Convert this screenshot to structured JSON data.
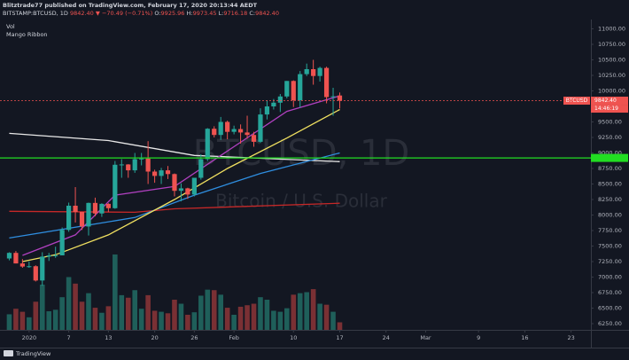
{
  "header": {
    "publisher_line": "Blitztrade77 published on TradingView.com, February 17, 2020 20:13:44 AEDT",
    "symbol": "BITSTAMP:BTCUSD, 1D",
    "last": "9842.40",
    "change": "▼ −70.49 (−0.71%)",
    "ohlc": [
      {
        "key": "O:",
        "value": "9925.96"
      },
      {
        "key": "H:",
        "value": "9973.45"
      },
      {
        "key": "L:",
        "value": "9716.18"
      },
      {
        "key": "C:",
        "value": "9842.40"
      }
    ],
    "indicators": [
      "Vol",
      "Mango Ribbon"
    ]
  },
  "footer": {
    "logo": "TradingView"
  },
  "chart_data": {
    "type": "candlestick",
    "watermark": [
      "BTCUSD, 1D",
      "Bitcoin / U.S. Dollar"
    ],
    "x": [
      "2019-12-29",
      "2019-12-30",
      "2019-12-31",
      "2020-01-01",
      "2020-01-02",
      "2020-01-03",
      "2020-01-04",
      "2020-01-05",
      "2020-01-06",
      "2020-01-07",
      "2020-01-08",
      "2020-01-09",
      "2020-01-10",
      "2020-01-11",
      "2020-01-12",
      "2020-01-13",
      "2020-01-14",
      "2020-01-15",
      "2020-01-16",
      "2020-01-17",
      "2020-01-18",
      "2020-01-19",
      "2020-01-20",
      "2020-01-21",
      "2020-01-22",
      "2020-01-23",
      "2020-01-24",
      "2020-01-25",
      "2020-01-26",
      "2020-01-27",
      "2020-01-28",
      "2020-01-29",
      "2020-01-30",
      "2020-01-31",
      "2020-02-01",
      "2020-02-02",
      "2020-02-03",
      "2020-02-04",
      "2020-02-05",
      "2020-02-06",
      "2020-02-07",
      "2020-02-08",
      "2020-02-09",
      "2020-02-10",
      "2020-02-11",
      "2020-02-12",
      "2020-02-13",
      "2020-02-14",
      "2020-02-15",
      "2020-02-16",
      "2020-02-17"
    ],
    "open": [
      7300,
      7390,
      7220,
      7170,
      7175,
      6945,
      7330,
      7350,
      7350,
      7760,
      8150,
      8050,
      7815,
      8195,
      8025,
      8180,
      8110,
      8810,
      8815,
      8720,
      8900,
      8910,
      8700,
      8630,
      8720,
      8660,
      8390,
      8430,
      8330,
      8600,
      8900,
      9390,
      9290,
      9500,
      9340,
      9385,
      9330,
      9290,
      9180,
      9620,
      9750,
      9810,
      9910,
      10160,
      9850,
      10270,
      10350,
      10240,
      10370,
      9900,
      9925.96
    ],
    "high": [
      7400,
      7420,
      7290,
      7250,
      7190,
      7400,
      7390,
      7490,
      7800,
      8200,
      8450,
      8050,
      8200,
      8280,
      8190,
      8190,
      8870,
      8900,
      8820,
      9000,
      9000,
      9190,
      8730,
      8760,
      8790,
      8670,
      8510,
      8440,
      8600,
      8980,
      9400,
      9430,
      9580,
      9520,
      9440,
      9460,
      9600,
      9340,
      9720,
      9850,
      9870,
      9950,
      10160,
      10170,
      10320,
      10440,
      10500,
      10390,
      10390,
      10050,
      9973.45
    ],
    "low": [
      7270,
      7220,
      7150,
      7150,
      6930,
      6860,
      7260,
      7310,
      7350,
      7730,
      7880,
      7760,
      7670,
      7980,
      7970,
      8050,
      8100,
      8600,
      8600,
      8680,
      8800,
      8500,
      8520,
      8500,
      8580,
      8300,
      8220,
      8260,
      8300,
      8570,
      8870,
      9250,
      9210,
      9220,
      9300,
      9150,
      9230,
      9100,
      9160,
      9540,
      9700,
      9660,
      9880,
      9740,
      9730,
      10240,
      10100,
      10150,
      9800,
      9600,
      9716.18
    ],
    "close": [
      7390,
      7220,
      7170,
      7175,
      6945,
      7330,
      7350,
      7350,
      7760,
      8150,
      8050,
      7815,
      8195,
      8025,
      8180,
      8110,
      8810,
      8815,
      8720,
      8900,
      8910,
      8700,
      8630,
      8720,
      8660,
      8390,
      8430,
      8330,
      8600,
      8900,
      9390,
      9290,
      9500,
      9340,
      9385,
      9330,
      9290,
      9180,
      9620,
      9750,
      9810,
      9910,
      10160,
      9850,
      10270,
      10350,
      10240,
      10370,
      9900,
      9913,
      9842.4
    ],
    "volume": [
      3100,
      4200,
      3600,
      2500,
      5600,
      9000,
      3700,
      4000,
      6500,
      10500,
      9200,
      5600,
      7300,
      4400,
      3400,
      4700,
      15000,
      6900,
      6400,
      7900,
      4200,
      6900,
      3800,
      3600,
      3300,
      6000,
      5200,
      3000,
      3500,
      6800,
      8000,
      7900,
      7000,
      4400,
      3000,
      4600,
      4900,
      5200,
      6500,
      6000,
      3800,
      3600,
      4300,
      7000,
      7300,
      7500,
      8100,
      5200,
      5000,
      3600,
      1500
    ],
    "up_color": "#26a69a",
    "down_color": "#ef5350",
    "volume_up_color": "#1f5f5a",
    "volume_down_color": "#7a3034",
    "lines": [
      {
        "color": "#e8e8e8",
        "x": [
          "2019-12-29",
          "2020-01-13",
          "2020-01-26",
          "2020-02-04",
          "2020-02-17"
        ],
        "values": [
          9316,
          9200,
          8960,
          8920,
          8860
        ]
      },
      {
        "color": "#c62828",
        "x": [
          "2019-12-29",
          "2020-01-17",
          "2020-01-23",
          "2020-02-17"
        ],
        "values": [
          8060,
          8045,
          8100,
          8190
        ]
      },
      {
        "color": "#2f8ee0",
        "x": [
          "2019-12-29",
          "2020-01-17",
          "2020-01-26",
          "2020-02-05",
          "2020-02-17"
        ],
        "values": [
          7630,
          7960,
          8320,
          8670,
          9000
        ]
      },
      {
        "color": "#f0e060",
        "x": [
          "2019-12-31",
          "2020-01-05",
          "2020-01-13",
          "2020-01-23",
          "2020-01-31",
          "2020-02-09",
          "2020-02-17"
        ],
        "values": [
          7250,
          7360,
          7680,
          8250,
          8750,
          9240,
          9700
        ]
      },
      {
        "color": "#b040c0",
        "x": [
          "2019-12-31",
          "2020-01-08",
          "2020-01-14",
          "2020-01-23",
          "2020-01-30",
          "2020-02-09",
          "2020-02-17"
        ],
        "values": [
          7350,
          7680,
          8320,
          8460,
          8960,
          9670,
          9920
        ]
      }
    ],
    "price_lines": [
      {
        "value": 9842.4,
        "color": "#ef5350"
      },
      {
        "value": 8920,
        "color": "#22dd22"
      }
    ],
    "last_label": {
      "symbol": "BTCUSD",
      "price": "9842.40",
      "countdown": "14:46:19"
    },
    "xlim": [
      "2019-12-28",
      "2020-03-26"
    ],
    "xticks": [
      {
        "value": "2020-01-01",
        "label": "2020"
      },
      {
        "value": "2020-01-07",
        "label": "7"
      },
      {
        "value": "2020-01-13",
        "label": "13"
      },
      {
        "value": "2020-01-20",
        "label": "20"
      },
      {
        "value": "2020-01-26",
        "label": "26"
      },
      {
        "value": "2020-02-01",
        "label": "Feb"
      },
      {
        "value": "2020-02-10",
        "label": "10"
      },
      {
        "value": "2020-02-17",
        "label": "17"
      },
      {
        "value": "2020-02-24",
        "label": "24"
      },
      {
        "value": "2020-03-01",
        "label": "Mar"
      },
      {
        "value": "2020-03-09",
        "label": "9"
      },
      {
        "value": "2020-03-16",
        "label": "16"
      },
      {
        "value": "2020-03-23",
        "label": "23"
      }
    ],
    "ylim": [
      6150,
      11150
    ],
    "yticks": [
      {
        "value": 6250,
        "label": "6250.00"
      },
      {
        "value": 6500,
        "label": "6500.00"
      },
      {
        "value": 6750,
        "label": "6750.00"
      },
      {
        "value": 7000,
        "label": "7000.00"
      },
      {
        "value": 7250,
        "label": "7250.00"
      },
      {
        "value": 7500,
        "label": "7500.00"
      },
      {
        "value": 7750,
        "label": "7750.00"
      },
      {
        "value": 8000,
        "label": "8000.00"
      },
      {
        "value": 8250,
        "label": "8250.00"
      },
      {
        "value": 8500,
        "label": "8500.00"
      },
      {
        "value": 8750,
        "label": "8750.00"
      },
      {
        "value": 9000,
        "label": "9000.00"
      },
      {
        "value": 9250,
        "label": "9250.00"
      },
      {
        "value": 9500,
        "label": "9500.00"
      },
      {
        "value": 9750,
        "label": "9750.00"
      },
      {
        "value": 10000,
        "label": "10000.00"
      },
      {
        "value": 10250,
        "label": "10250.00"
      },
      {
        "value": 10500,
        "label": "10500.00"
      },
      {
        "value": 10750,
        "label": "10750.00"
      },
      {
        "value": 11000,
        "label": "11000.00"
      }
    ]
  }
}
